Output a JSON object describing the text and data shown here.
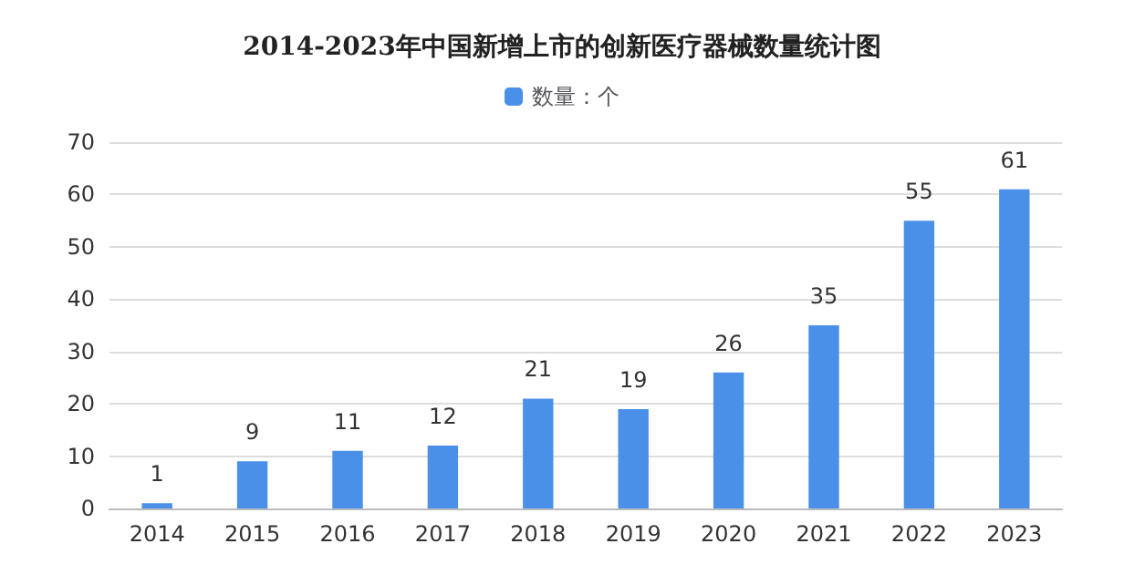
{
  "chart_data": {
    "type": "bar",
    "title": "2014-2023年中国新增上市的创新医疗器械数量统计图",
    "categories": [
      "2014",
      "2015",
      "2016",
      "2017",
      "2018",
      "2019",
      "2020",
      "2021",
      "2022",
      "2023"
    ],
    "series": [
      {
        "name": "数量：个",
        "color": "#4a90e8",
        "values": [
          1,
          9,
          11,
          12,
          21,
          19,
          26,
          35,
          55,
          61
        ]
      }
    ],
    "ylim": [
      0,
      70
    ],
    "yticks": [
      0,
      10,
      20,
      30,
      40,
      50,
      60,
      70
    ],
    "grid": "y",
    "legend": "top",
    "data_labels": true
  }
}
